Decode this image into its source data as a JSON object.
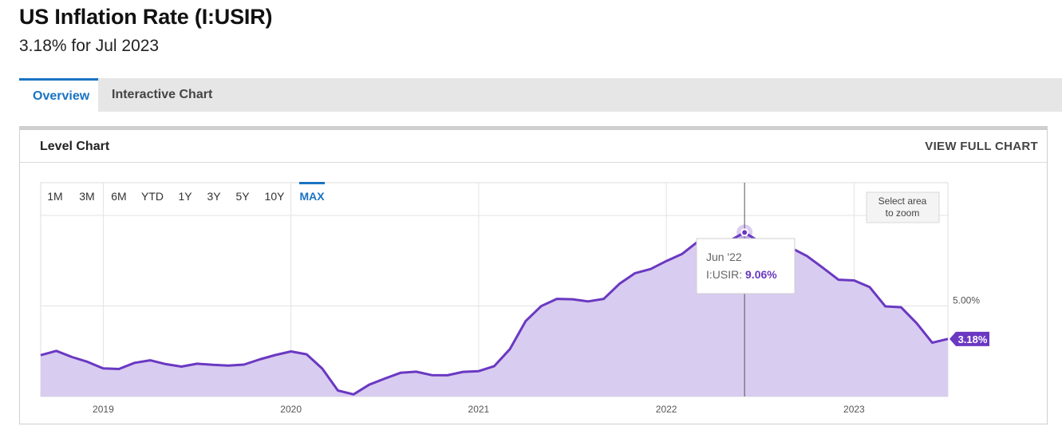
{
  "page": {
    "title": "US Inflation Rate (I:USIR)",
    "subtitle": "3.18% for Jul 2023"
  },
  "tabs": [
    {
      "label": "Overview",
      "active": true
    },
    {
      "label": "Interactive Chart",
      "active": false
    }
  ],
  "panel": {
    "title": "Level Chart",
    "link": "VIEW FULL CHART"
  },
  "range_buttons": [
    "1M",
    "3M",
    "6M",
    "YTD",
    "1Y",
    "3Y",
    "5Y",
    "10Y",
    "MAX"
  ],
  "active_range": "MAX",
  "zoom_hint": [
    "Select area",
    "to zoom"
  ],
  "tooltip": {
    "date": "Jun '22",
    "series": "I:USIR:",
    "value": "9.06%"
  },
  "last_value_label": "3.18%",
  "colors": {
    "accent": "#1a73c4",
    "series_line": "#6a38c2",
    "series_fill": "#d8ccf0",
    "label_bg": "#6a38c2"
  },
  "chart_data": {
    "type": "area",
    "series": [
      {
        "name": "I:USIR",
        "points": [
          [
            "2018-09",
            2.28
          ],
          [
            "2018-10",
            2.52
          ],
          [
            "2018-11",
            2.18
          ],
          [
            "2018-12",
            1.91
          ],
          [
            "2019-01",
            1.55
          ],
          [
            "2019-02",
            1.52
          ],
          [
            "2019-03",
            1.86
          ],
          [
            "2019-04",
            2.0
          ],
          [
            "2019-05",
            1.79
          ],
          [
            "2019-06",
            1.65
          ],
          [
            "2019-07",
            1.81
          ],
          [
            "2019-08",
            1.75
          ],
          [
            "2019-09",
            1.71
          ],
          [
            "2019-10",
            1.76
          ],
          [
            "2019-11",
            2.05
          ],
          [
            "2019-12",
            2.29
          ],
          [
            "2020-01",
            2.49
          ],
          [
            "2020-02",
            2.33
          ],
          [
            "2020-03",
            1.54
          ],
          [
            "2020-04",
            0.33
          ],
          [
            "2020-05",
            0.12
          ],
          [
            "2020-06",
            0.65
          ],
          [
            "2020-07",
            0.99
          ],
          [
            "2020-08",
            1.31
          ],
          [
            "2020-09",
            1.37
          ],
          [
            "2020-10",
            1.18
          ],
          [
            "2020-11",
            1.17
          ],
          [
            "2020-12",
            1.36
          ],
          [
            "2021-01",
            1.4
          ],
          [
            "2021-02",
            1.68
          ],
          [
            "2021-03",
            2.62
          ],
          [
            "2021-04",
            4.16
          ],
          [
            "2021-05",
            4.99
          ],
          [
            "2021-06",
            5.39
          ],
          [
            "2021-07",
            5.37
          ],
          [
            "2021-08",
            5.25
          ],
          [
            "2021-09",
            5.39
          ],
          [
            "2021-10",
            6.22
          ],
          [
            "2021-11",
            6.81
          ],
          [
            "2021-12",
            7.04
          ],
          [
            "2022-01",
            7.48
          ],
          [
            "2022-02",
            7.87
          ],
          [
            "2022-03",
            8.54
          ],
          [
            "2022-04",
            8.26
          ],
          [
            "2022-05",
            8.58
          ],
          [
            "2022-06",
            9.06
          ],
          [
            "2022-07",
            8.52
          ],
          [
            "2022-08",
            8.26
          ],
          [
            "2022-09",
            8.2
          ],
          [
            "2022-10",
            7.75
          ],
          [
            "2022-11",
            7.11
          ],
          [
            "2022-12",
            6.45
          ],
          [
            "2023-01",
            6.41
          ],
          [
            "2023-02",
            6.04
          ],
          [
            "2023-03",
            4.98
          ],
          [
            "2023-04",
            4.93
          ],
          [
            "2023-05",
            4.05
          ],
          [
            "2023-06",
            2.97
          ],
          [
            "2023-07",
            3.18
          ]
        ]
      }
    ],
    "x_ticks": [
      "2019",
      "2020",
      "2021",
      "2022",
      "2023"
    ],
    "y_ticks": [
      {
        "value": 5,
        "label": "5.00%"
      }
    ],
    "ylim": [
      0,
      10
    ],
    "grid": true,
    "highlight": {
      "x": "2022-06",
      "value": 9.06
    }
  }
}
